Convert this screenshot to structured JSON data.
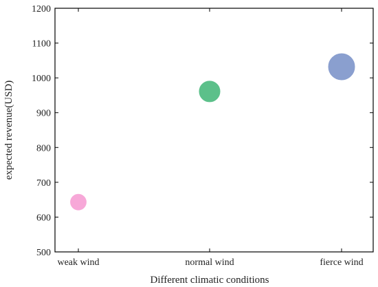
{
  "chart_data": {
    "type": "scatter",
    "title": "",
    "xlabel": "Different climatic conditions",
    "ylabel": "expected revenue(USD)",
    "categories": [
      "weak wind",
      "normal  wind",
      "fierce wind"
    ],
    "values": [
      643,
      961,
      1032
    ],
    "relative_bubble_size": [
      0.36,
      0.62,
      1.0
    ],
    "colors": [
      "#f7a8d8",
      "#5cc08a",
      "#8a9fcf"
    ],
    "ylim": [
      500,
      1200
    ],
    "yticks": [
      500,
      600,
      700,
      800,
      900,
      1000,
      1100,
      1200
    ],
    "grid": false,
    "legend": "none"
  }
}
